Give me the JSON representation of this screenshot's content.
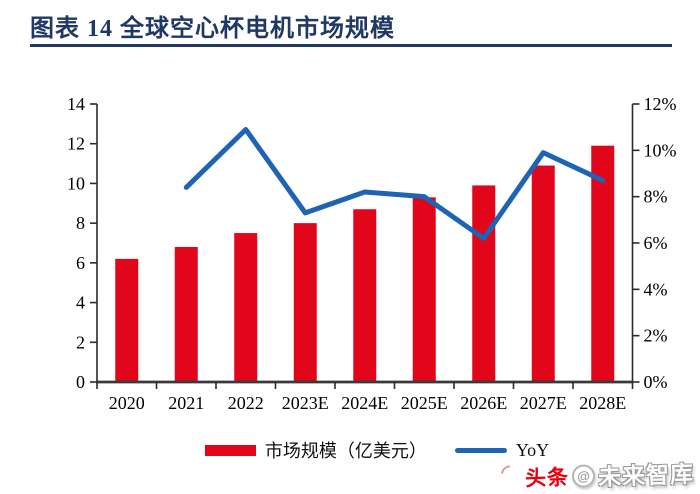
{
  "header": {
    "title": "图表 14  全球空心杯电机市场规模",
    "accent_color": "#1F3864"
  },
  "chart_data": {
    "type": "bar+line combo",
    "categories": [
      "2020",
      "2021",
      "2022",
      "2023E",
      "2024E",
      "2025E",
      "2026E",
      "2027E",
      "2028E"
    ],
    "series": [
      {
        "name": "市场规模（亿美元）",
        "type": "bar",
        "axis": "left",
        "color": "#E2061A",
        "values": [
          6.2,
          6.8,
          7.5,
          8.0,
          8.7,
          9.3,
          9.9,
          10.9,
          11.9
        ]
      },
      {
        "name": "YoY",
        "type": "line",
        "axis": "right",
        "color": "#1F63B5",
        "values": [
          null,
          8.4,
          10.9,
          7.3,
          8.2,
          8.0,
          6.2,
          9.9,
          8.7
        ]
      }
    ],
    "left_axis": {
      "min": 0,
      "max": 14,
      "step": 2,
      "ticks": [
        "0",
        "2",
        "4",
        "6",
        "8",
        "10",
        "12",
        "14"
      ]
    },
    "right_axis": {
      "min": 0,
      "max": 12,
      "step": 2,
      "ticks": [
        "0%",
        "2%",
        "4%",
        "6%",
        "8%",
        "10%",
        "12%"
      ],
      "unit": "%"
    },
    "grid": false,
    "legend_position": "bottom",
    "axis_color": "#2b2b2b"
  },
  "watermark": {
    "prefix": "头条",
    "at": "@",
    "suffix": "未来智库",
    "prefix_color": "#E60012"
  }
}
